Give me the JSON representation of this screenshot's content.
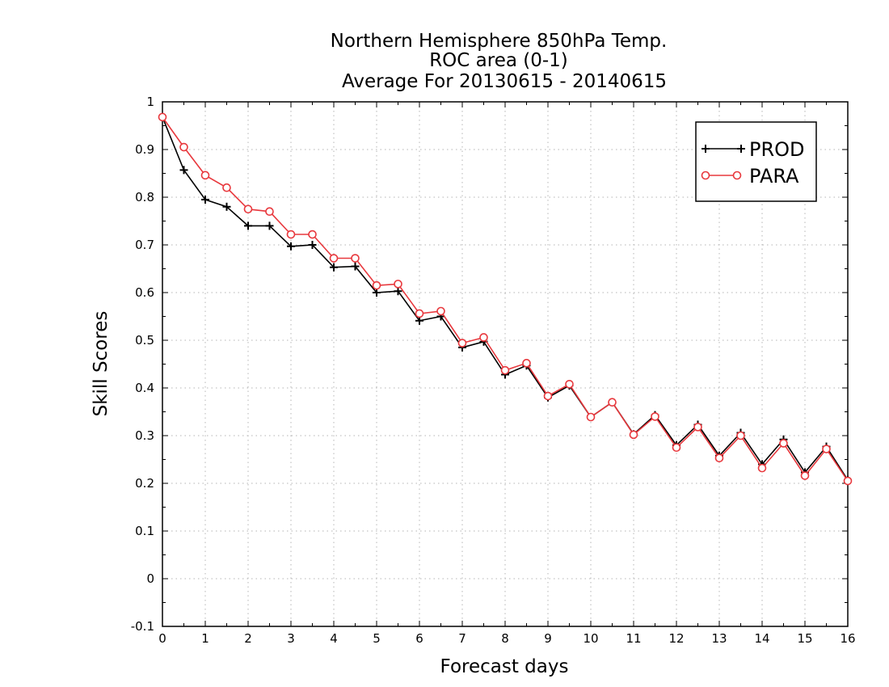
{
  "chart_data": {
    "type": "line",
    "title": [
      "Northern Hemisphere 850hPa Temp.",
      "ROC area (0-1)",
      "Average For 20130615 - 20140615"
    ],
    "xlabel": "Forecast days",
    "ylabel": "Skill Scores",
    "xlim": [
      0,
      16
    ],
    "ylim": [
      -0.1,
      1
    ],
    "xticks": [
      0,
      1,
      2,
      3,
      4,
      5,
      6,
      7,
      8,
      9,
      10,
      11,
      12,
      13,
      14,
      15,
      16
    ],
    "yticks": [
      -0.1,
      0,
      0.1,
      0.2,
      0.3,
      0.4,
      0.5,
      0.6,
      0.7,
      0.8,
      0.9,
      1
    ],
    "ytick_labels": [
      "-0.1",
      "0",
      "0.1",
      "0.2",
      "0.3",
      "0.4",
      "0.5",
      "0.6",
      "0.7",
      "0.8",
      "0.9",
      "1"
    ],
    "xtick_labels": [
      "0",
      "1",
      "2",
      "3",
      "4",
      "5",
      "6",
      "7",
      "8",
      "9",
      "10",
      "11",
      "12",
      "13",
      "14",
      "15",
      "16"
    ],
    "grid": true,
    "legend_position": "top-right",
    "x": [
      0,
      0.5,
      1,
      1.5,
      2,
      2.5,
      3,
      3.5,
      4,
      4.5,
      5,
      5.5,
      6,
      6.5,
      7,
      7.5,
      8,
      8.5,
      9,
      9.5,
      10,
      10.5,
      11,
      11.5,
      12,
      12.5,
      13,
      13.5,
      14,
      14.5,
      15,
      15.5,
      16
    ],
    "series": [
      {
        "name": "PROD",
        "color": "#000000",
        "marker": "plus",
        "values": [
          0.968,
          0.857,
          0.795,
          0.78,
          0.74,
          0.74,
          0.697,
          0.7,
          0.653,
          0.655,
          0.6,
          0.603,
          0.541,
          0.55,
          0.485,
          0.497,
          0.428,
          0.447,
          0.38,
          0.405,
          0.339,
          0.37,
          0.303,
          0.343,
          0.28,
          0.323,
          0.258,
          0.306,
          0.24,
          0.292,
          0.223,
          0.277,
          0.207
        ]
      },
      {
        "name": "PARA",
        "color": "#e8383d",
        "marker": "circle",
        "values": [
          0.968,
          0.905,
          0.846,
          0.82,
          0.775,
          0.77,
          0.722,
          0.722,
          0.672,
          0.672,
          0.615,
          0.618,
          0.556,
          0.561,
          0.494,
          0.506,
          0.437,
          0.452,
          0.383,
          0.408,
          0.339,
          0.37,
          0.302,
          0.34,
          0.275,
          0.318,
          0.253,
          0.3,
          0.232,
          0.284,
          0.216,
          0.272,
          0.205
        ]
      }
    ]
  }
}
